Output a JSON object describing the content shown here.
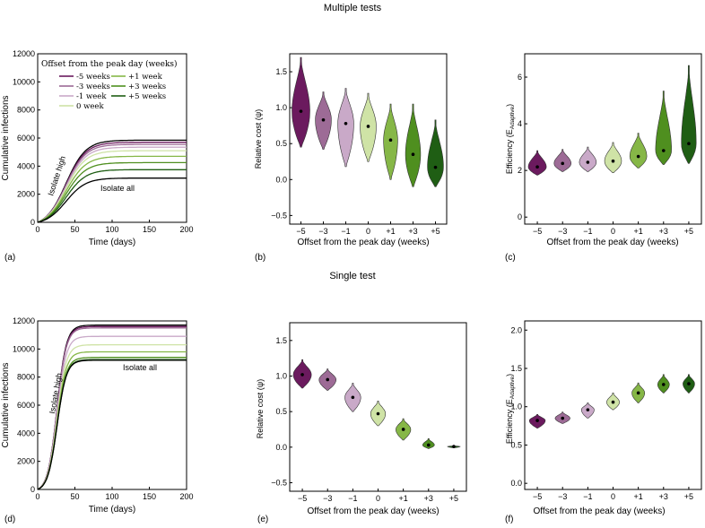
{
  "section_titles": {
    "top": "Multiple tests",
    "bottom": "Single test"
  },
  "offset_labels": [
    "−5",
    "−3",
    "−1",
    "0",
    "+1",
    "+3",
    "+5"
  ],
  "offset_colors": [
    "#6b1a5e",
    "#9d6b96",
    "#c9a9c8",
    "#cfe3a6",
    "#86b747",
    "#4f8f1f",
    "#1f5e14"
  ],
  "chart_data": [
    {
      "id": "a",
      "panel_label": "(a)",
      "type": "line",
      "xlabel": "Time (days)",
      "ylabel": "Cumulative infections",
      "xlim": [
        0,
        200
      ],
      "ylim": [
        0,
        12000
      ],
      "xticks": [
        "0",
        "50",
        "100",
        "150",
        "200"
      ],
      "yticks": [
        "0",
        "2000",
        "4000",
        "6000",
        "8000",
        "10000",
        "12000"
      ],
      "legend_title": "Offset from the peak day (weeks)",
      "legend_col1": [
        "-5 weeks",
        "-3 weeks",
        "-1 week",
        "0 week"
      ],
      "legend_col2": [
        "+1 week",
        "+3 weeks",
        "+5 weeks"
      ],
      "annotations": {
        "isolate_high": "Isolate high",
        "isolate_all": "Isolate all"
      },
      "series": [
        {
          "name": "Isolate high",
          "final": 5850,
          "color": "#000000"
        },
        {
          "name": "-5 weeks",
          "final": 5700,
          "color": "#6b1a5e"
        },
        {
          "name": "-3 weeks",
          "final": 5550,
          "color": "#9d6b96"
        },
        {
          "name": "-1 week",
          "final": 5350,
          "color": "#c9a9c8"
        },
        {
          "name": "0 week",
          "final": 5100,
          "color": "#cfe3a6"
        },
        {
          "name": "+1 week",
          "final": 4700,
          "color": "#86b747"
        },
        {
          "name": "+3 weeks",
          "final": 4250,
          "color": "#4f8f1f"
        },
        {
          "name": "+5 weeks",
          "final": 3750,
          "color": "#1f5e14"
        },
        {
          "name": "Isolate all",
          "final": 3150,
          "color": "#000000"
        }
      ],
      "midpoint_day": 38,
      "steepness": 0.075
    },
    {
      "id": "b",
      "panel_label": "(b)",
      "type": "violin",
      "xlabel": "Offset from the peak day (weeks)",
      "ylabel": "Relative cost (ψ)",
      "ylim": [
        -0.62,
        1.75
      ],
      "yticks": [
        "−0.5",
        "0.0",
        "0.5",
        "1.0",
        "1.5"
      ],
      "ytick_values": [
        -0.5,
        0,
        0.5,
        1.0,
        1.5
      ],
      "means": [
        0.95,
        0.83,
        0.78,
        0.74,
        0.55,
        0.35,
        0.17
      ],
      "mins": [
        0.45,
        0.42,
        0.18,
        0.25,
        0.0,
        -0.1,
        -0.1
      ],
      "maxs": [
        1.7,
        1.22,
        1.27,
        1.2,
        1.05,
        1.05,
        0.83
      ],
      "widths": [
        0.95,
        0.85,
        0.85,
        0.85,
        0.75,
        0.8,
        0.85
      ]
    },
    {
      "id": "c",
      "panel_label": "(c)",
      "type": "violin",
      "xlabel": "Offset from the peak day (weeks)",
      "ylabel": "Efficiency (E",
      "ylabel_sub": "Adaptive",
      "ylim": [
        -0.3,
        7.0
      ],
      "yticks": [
        "0",
        "2",
        "4",
        "6"
      ],
      "ytick_values": [
        0,
        2,
        4,
        6
      ],
      "means": [
        2.15,
        2.3,
        2.35,
        2.4,
        2.6,
        2.85,
        3.15
      ],
      "mins": [
        1.8,
        1.95,
        1.95,
        1.9,
        2.1,
        2.25,
        2.3
      ],
      "maxs": [
        2.85,
        2.9,
        3.0,
        3.2,
        3.6,
        5.4,
        6.5
      ],
      "widths": [
        0.85,
        0.8,
        0.8,
        0.8,
        0.8,
        0.75,
        0.7
      ]
    },
    {
      "id": "d",
      "panel_label": "(d)",
      "type": "line",
      "xlabel": "Time (days)",
      "ylabel": "Cumulative infections",
      "xlim": [
        0,
        200
      ],
      "ylim": [
        0,
        12000
      ],
      "xticks": [
        "0",
        "50",
        "100",
        "150",
        "200"
      ],
      "yticks": [
        "0",
        "2000",
        "4000",
        "6000",
        "8000",
        "10000",
        "12000"
      ],
      "annotations": {
        "isolate_high": "Isolate high",
        "isolate_all": "Isolate all"
      },
      "series": [
        {
          "name": "Isolate high",
          "final": 11700,
          "color": "#000000"
        },
        {
          "name": "-5 weeks",
          "final": 11600,
          "color": "#6b1a5e"
        },
        {
          "name": "-3 weeks",
          "final": 11500,
          "color": "#9d6b96"
        },
        {
          "name": "-1 week",
          "final": 10900,
          "color": "#c9a9c8"
        },
        {
          "name": "0 week",
          "final": 10300,
          "color": "#cfe3a6"
        },
        {
          "name": "+1 week",
          "final": 9800,
          "color": "#86b747"
        },
        {
          "name": "+3 weeks",
          "final": 9400,
          "color": "#4f8f1f"
        },
        {
          "name": "+5 weeks",
          "final": 9250,
          "color": "#1f5e14"
        },
        {
          "name": "Isolate all",
          "final": 9200,
          "color": "#000000"
        }
      ],
      "midpoint_day": 26,
      "steepness": 0.16
    },
    {
      "id": "e",
      "panel_label": "(e)",
      "type": "violin",
      "xlabel": "Offset from the peak day (weeks)",
      "ylabel": "Relative cost (ψ)",
      "ylim": [
        -0.62,
        1.75
      ],
      "yticks": [
        "−0.5",
        "0.0",
        "0.5",
        "1.0",
        "1.5"
      ],
      "ytick_values": [
        -0.5,
        0,
        0.5,
        1.0,
        1.5
      ],
      "means": [
        1.02,
        0.95,
        0.7,
        0.47,
        0.25,
        0.03,
        0.01
      ],
      "mins": [
        0.83,
        0.8,
        0.5,
        0.3,
        0.1,
        -0.02,
        -0.01
      ],
      "maxs": [
        1.23,
        1.1,
        0.9,
        0.65,
        0.4,
        0.12,
        0.02
      ],
      "widths": [
        0.85,
        0.8,
        0.75,
        0.7,
        0.7,
        0.55,
        0.6
      ]
    },
    {
      "id": "f",
      "panel_label": "(f)",
      "type": "violin",
      "xlabel": "Offset from the peak day (weeks)",
      "ylabel": "Efficiency (E",
      "ylabel_sub": "Adaptive",
      "ylim": [
        -0.08,
        2.12
      ],
      "yticks": [
        "0.0",
        "0.5",
        "1.0",
        "1.5",
        "2.0"
      ],
      "ytick_values": [
        0,
        0.5,
        1.0,
        1.5,
        2.0
      ],
      "means": [
        0.82,
        0.85,
        0.96,
        1.06,
        1.18,
        1.29,
        1.3
      ],
      "mins": [
        0.72,
        0.78,
        0.85,
        0.96,
        1.05,
        1.18,
        1.18
      ],
      "maxs": [
        0.9,
        0.93,
        1.05,
        1.18,
        1.31,
        1.42,
        1.42
      ],
      "widths": [
        0.75,
        0.7,
        0.6,
        0.6,
        0.6,
        0.55,
        0.55
      ]
    }
  ]
}
